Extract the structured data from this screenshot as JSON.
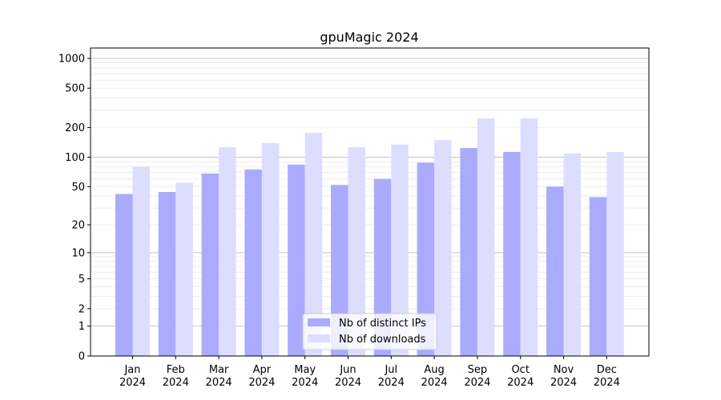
{
  "chart_data": {
    "type": "bar",
    "title": "gpuMagic 2024",
    "xlabel": "",
    "ylabel": "",
    "yscale": "log(1+y)",
    "ylim": [
      0,
      1200
    ],
    "yticks": [
      0,
      1,
      2,
      5,
      10,
      20,
      50,
      100,
      200,
      500,
      1000
    ],
    "grid": true,
    "legend_position": "bottom-center",
    "categories": [
      "Jan\n2024",
      "Feb\n2024",
      "Mar\n2024",
      "Apr\n2024",
      "May\n2024",
      "Jun\n2024",
      "Jul\n2024",
      "Aug\n2024",
      "Sep\n2024",
      "Oct\n2024",
      "Nov\n2024",
      "Dec\n2024"
    ],
    "series": [
      {
        "name": "Nb of distinct IPs",
        "color": "#aaaaff",
        "values": [
          42,
          44,
          68,
          75,
          84,
          52,
          60,
          88,
          124,
          113,
          50,
          39
        ]
      },
      {
        "name": "Nb of downloads",
        "color": "#ddddff",
        "values": [
          80,
          55,
          126,
          139,
          177,
          126,
          134,
          149,
          247,
          247,
          109,
          113
        ]
      }
    ]
  }
}
